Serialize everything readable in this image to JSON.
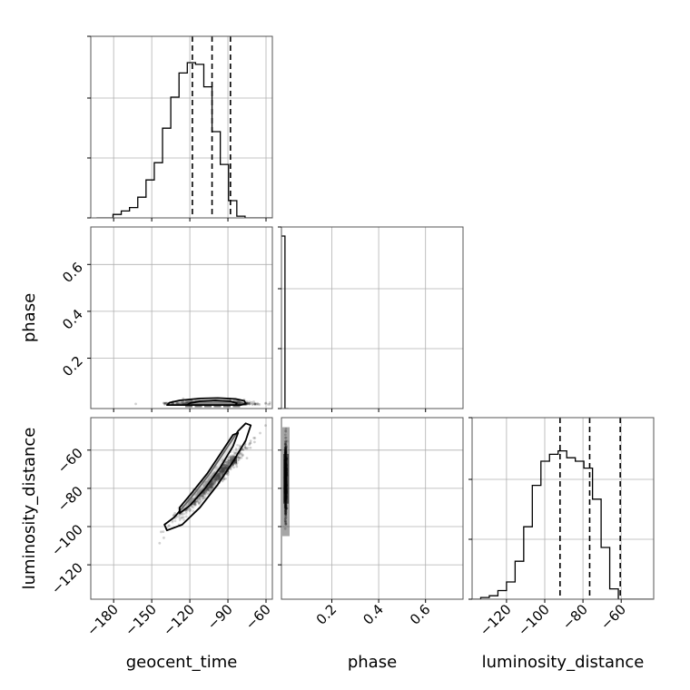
{
  "chart_data": {
    "type": "corner",
    "parameters": [
      "geocent_time",
      "phase",
      "luminosity_distance"
    ],
    "colors": {
      "line": "#000000",
      "grid": "#b0b0b0",
      "density": "#000000"
    },
    "grid": true,
    "axes": {
      "geocent_time": {
        "range": [
          -198,
          -55
        ],
        "ticks": [
          -180,
          -150,
          -120,
          -90,
          -60
        ],
        "tick_labels": [
          "−180",
          "−150",
          "−120",
          "−90",
          "−60"
        ]
      },
      "phase": {
        "range": [
          -0.015,
          0.76
        ],
        "ticks": [
          0.2,
          0.4,
          0.6
        ],
        "tick_labels": [
          "0.2",
          "0.4",
          "0.6"
        ]
      },
      "luminosity_distance": {
        "range": [
          -138,
          -43
        ],
        "ticks": [
          -120,
          -100,
          -80,
          -60
        ],
        "tick_labels": [
          "−120",
          "−100",
          "−80",
          "−60"
        ]
      }
    },
    "histograms": [
      {
        "param": "geocent_time",
        "bin_edges": [
          -193.5,
          -187,
          -180.5,
          -174,
          -167.5,
          -161,
          -154.5,
          -148,
          -141.5,
          -135,
          -128.5,
          -122,
          -115.5,
          -109,
          -102.5,
          -96,
          -89.5,
          -83,
          -76.5,
          -70,
          -63.5,
          -57,
          -50.5
        ],
        "counts": [
          0,
          0,
          0.02,
          0.04,
          0.06,
          0.12,
          0.22,
          0.32,
          0.52,
          0.7,
          0.84,
          0.9,
          0.89,
          0.76,
          0.5,
          0.31,
          0.1,
          0.01,
          0.0,
          0.0,
          0.0,
          0.0
        ],
        "quantiles": [
          -118,
          -102.5,
          -88
        ],
        "ylim": [
          0,
          1
        ]
      },
      {
        "param": "phase",
        "bin_edges": [
          -0.015,
          0.0,
          0.015
        ],
        "counts": [
          1.0,
          0.0
        ],
        "quantiles": [],
        "ylim": [
          0,
          1
        ]
      },
      {
        "param": "luminosity_distance",
        "bin_edges": [
          -138,
          -133.5,
          -129,
          -124.5,
          -120,
          -115.5,
          -111,
          -106.5,
          -102,
          -97.5,
          -93,
          -88.5,
          -84,
          -79.5,
          -75,
          -70.5,
          -66,
          -61.5,
          -57,
          -52.5,
          -48,
          -43.5
        ],
        "counts": [
          0,
          0.01,
          0.02,
          0.05,
          0.1,
          0.22,
          0.42,
          0.66,
          0.8,
          0.84,
          0.86,
          0.82,
          0.8,
          0.76,
          0.58,
          0.3,
          0.06,
          0.0,
          0.0,
          0.0,
          0.0
        ],
        "quantiles": [
          -92,
          -76.5,
          -60.5
        ],
        "ylim": [
          0,
          1
        ]
      }
    ],
    "scatter_2d": [
      {
        "x_param": "geocent_time",
        "y_param": "phase",
        "center": [
          -102,
          0.015
        ],
        "spread": [
          15,
          0.006
        ],
        "contours": [
          {
            "level": 1,
            "points": [
              [
                -138,
                0.0
              ],
              [
                -136,
                0.01
              ],
              [
                -128,
                0.02
              ],
              [
                -112,
                0.028
              ],
              [
                -98,
                0.03
              ],
              [
                -84,
                0.026
              ],
              [
                -77,
                0.018
              ],
              [
                -76,
                0.006
              ],
              [
                -80,
                0.0
              ]
            ]
          },
          {
            "level": 2,
            "points": [
              [
                -122,
                0.0
              ],
              [
                -120,
                0.008
              ],
              [
                -112,
                0.016
              ],
              [
                -100,
                0.02
              ],
              [
                -88,
                0.016
              ],
              [
                -83,
                0.008
              ],
              [
                -84,
                0.0
              ]
            ]
          }
        ]
      },
      {
        "x_param": "geocent_time",
        "y_param": "luminosity_distance",
        "center": [
          -102,
          -76
        ],
        "spread": [
          13,
          9
        ],
        "contours": [
          {
            "level": 1,
            "points": [
              [
                -140,
                -99
              ],
              [
                -132,
                -95
              ],
              [
                -118,
                -84
              ],
              [
                -104,
                -72
              ],
              [
                -92,
                -60
              ],
              [
                -82,
                -50
              ],
              [
                -76,
                -46
              ],
              [
                -72,
                -47
              ],
              [
                -76,
                -55
              ],
              [
                -86,
                -66
              ],
              [
                -98,
                -78
              ],
              [
                -112,
                -90
              ],
              [
                -126,
                -99
              ],
              [
                -138,
                -102
              ]
            ]
          },
          {
            "level": 2,
            "points": [
              [
                -128,
                -90
              ],
              [
                -118,
                -82
              ],
              [
                -106,
                -72
              ],
              [
                -96,
                -62
              ],
              [
                -86,
                -52
              ],
              [
                -82,
                -51
              ],
              [
                -86,
                -58
              ],
              [
                -96,
                -69
              ],
              [
                -108,
                -80
              ],
              [
                -120,
                -89
              ],
              [
                -128,
                -93
              ]
            ]
          }
        ]
      },
      {
        "x_param": "phase",
        "y_param": "luminosity_distance",
        "center": [
          0.006,
          -75
        ],
        "spread": [
          0.004,
          9
        ],
        "contours": []
      }
    ]
  }
}
